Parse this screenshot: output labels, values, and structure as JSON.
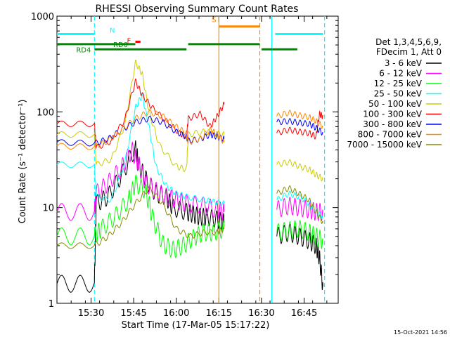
{
  "chart_data": {
    "type": "line",
    "title": "RHESSI Observing Summary Count Rates",
    "xlabel": "Start Time (17-Mar-05 15:17:22)",
    "ylabel": "Count Rate (s⁻¹ detector⁻¹)",
    "ylog": true,
    "ylim": [
      1,
      1000
    ],
    "xlim_minutes": [
      15.3,
      16.95
    ],
    "x_tick_labels": [
      "15:30",
      "15:45",
      "16:00",
      "16:15",
      "16:30",
      "16:45"
    ],
    "x_tick_values": [
      15.5,
      15.75,
      16.0,
      16.25,
      16.5,
      16.75
    ],
    "y_tick_labels": [
      "1",
      "10",
      "100",
      "1000"
    ],
    "y_tick_values": [
      1,
      10,
      100,
      1000
    ],
    "legend_header": [
      "Det 1,3,4,5,6,9,",
      "FDecim 1, Att 0"
    ],
    "legend_position": "right",
    "footer_date": "15-Oct-2021 14:56",
    "series": [
      {
        "name": "3 - 6 keV",
        "color": "#000000",
        "x": [
          15.3,
          15.52,
          15.53,
          15.6,
          15.68,
          15.76,
          15.78,
          15.82,
          15.88,
          15.94,
          15.98,
          16.06,
          16.1,
          16.14,
          16.18,
          16.24,
          16.28
        ],
        "y": [
          1.6,
          1.6,
          11.0,
          13.0,
          22.0,
          42.0,
          28.0,
          20.0,
          14.0,
          13.0,
          10.0,
          9.0,
          8.5,
          8.0,
          8.0,
          7.5,
          7.0
        ]
      },
      {
        "name": "6 - 12 keV",
        "color": "#ff00ff",
        "x": [
          15.3,
          15.52,
          15.53,
          15.6,
          15.68,
          15.74,
          15.78,
          15.82,
          15.88,
          15.94,
          16.0,
          16.06,
          16.16,
          16.24,
          16.28
        ],
        "y": [
          9.0,
          9.0,
          14.0,
          18.0,
          26.0,
          40.0,
          28.0,
          18.0,
          15.0,
          13.0,
          12.0,
          11.0,
          10.5,
          9.5,
          9.0
        ]
      },
      {
        "name": "12 - 25 keV",
        "color": "#00ff00",
        "x": [
          15.3,
          15.52,
          15.56,
          15.64,
          15.72,
          15.76,
          15.82,
          15.86,
          15.92,
          15.98,
          16.04,
          16.1,
          16.16,
          16.22,
          16.28
        ],
        "y": [
          5.0,
          5.0,
          6.0,
          8.0,
          12.0,
          18.0,
          15.0,
          8.0,
          4.2,
          3.6,
          4.0,
          4.8,
          5.5,
          5.5,
          6.0
        ]
      },
      {
        "name": "25 - 50 keV",
        "color": "#00ffff",
        "x": [
          15.3,
          15.52,
          15.53,
          15.62,
          15.7,
          15.76,
          15.8,
          15.84,
          15.88,
          15.94,
          16.0,
          16.06,
          16.16,
          16.22,
          16.28
        ],
        "y": [
          28.0,
          28.0,
          13.0,
          12.0,
          30.0,
          110.0,
          150.0,
          70.0,
          27.0,
          17.0,
          14.0,
          13.0,
          12.0,
          11.5,
          11.0
        ]
      },
      {
        "name": "50 - 100 keV",
        "color": "#cccc00",
        "x": [
          15.3,
          15.52,
          15.53,
          15.62,
          15.7,
          15.76,
          15.8,
          15.84,
          15.9,
          16.0,
          16.06,
          16.07,
          16.16,
          16.22,
          16.28
        ],
        "y": [
          58.0,
          58.0,
          28.0,
          32.0,
          75.0,
          330.0,
          250.0,
          100.0,
          45.0,
          27.0,
          25.0,
          58.0,
          62.0,
          60.0,
          58.0
        ]
      },
      {
        "name": "100 - 300 keV",
        "color": "#ff0000",
        "x": [
          15.3,
          15.52,
          15.53,
          15.62,
          15.7,
          15.76,
          15.8,
          15.86,
          15.94,
          16.02,
          16.06,
          16.07,
          16.14,
          16.2,
          16.24,
          16.28
        ],
        "y": [
          75.0,
          75.0,
          42.0,
          50.0,
          85.0,
          210.0,
          150.0,
          110.0,
          80.0,
          60.0,
          55.0,
          85.0,
          95.0,
          70.0,
          90.0,
          120.0
        ]
      },
      {
        "name": "300 - 800 keV",
        "color": "#0000ff",
        "x": [
          15.3,
          15.52,
          15.6,
          15.68,
          15.76,
          15.84,
          15.92,
          16.0,
          16.06,
          16.07,
          16.14,
          16.2,
          16.24,
          16.28
        ],
        "y": [
          48.0,
          47.0,
          52.0,
          65.0,
          78.0,
          85.0,
          78.0,
          62.0,
          55.0,
          50.0,
          52.0,
          58.0,
          55.0,
          52.0
        ]
      },
      {
        "name": "800 - 7000 keV",
        "color": "#ff8800",
        "x": [
          15.3,
          15.52,
          15.6,
          15.68,
          15.76,
          15.84,
          15.92,
          16.0,
          16.06,
          16.07,
          16.14,
          16.2,
          16.24,
          16.28
        ],
        "y": [
          44.0,
          43.0,
          50.0,
          65.0,
          85.0,
          100.0,
          90.0,
          70.0,
          60.0,
          48.0,
          52.0,
          65.0,
          58.0,
          48.0
        ]
      },
      {
        "name": "7000 - 15000 keV",
        "color": "#888800",
        "x": [
          15.3,
          15.52,
          15.6,
          15.68,
          15.76,
          15.84,
          15.92,
          16.0,
          16.08,
          16.16,
          16.24,
          16.28
        ],
        "y": [
          4.0,
          4.0,
          5.0,
          7.0,
          11.0,
          16.0,
          11.0,
          6.0,
          5.0,
          5.5,
          5.5,
          6.0
        ]
      }
    ],
    "series_gap2": {
      "3 - 6 keV": {
        "x": [
          16.59,
          16.66,
          16.72,
          16.78,
          16.82,
          16.84,
          16.86
        ],
        "y": [
          5.0,
          5.5,
          5.0,
          4.5,
          4.0,
          3.0,
          1.5
        ]
      },
      "6 - 12 keV": {
        "x": [
          16.59,
          16.66,
          16.72,
          16.78,
          16.82,
          16.86
        ],
        "y": [
          9.5,
          10.5,
          10.0,
          9.5,
          9.0,
          9.0
        ]
      },
      "12 - 25 keV": {
        "x": [
          16.59,
          16.66,
          16.72,
          16.78,
          16.82,
          16.86
        ],
        "y": [
          5.5,
          5.8,
          6.0,
          5.5,
          5.0,
          4.5
        ]
      },
      "25 - 50 keV": {
        "x": [
          16.59,
          16.66,
          16.72,
          16.78,
          16.82,
          16.86
        ],
        "y": [
          12.0,
          14.0,
          13.0,
          11.0,
          9.0,
          8.0
        ]
      },
      "50 - 100 keV": {
        "x": [
          16.59,
          16.66,
          16.72,
          16.78,
          16.82,
          16.86
        ],
        "y": [
          28.0,
          30.0,
          27.0,
          25.0,
          22.0,
          20.0
        ]
      },
      "100 - 300 keV": {
        "x": [
          16.59,
          16.66,
          16.72,
          16.78,
          16.82,
          16.84,
          16.86
        ],
        "y": [
          60.0,
          65.0,
          62.0,
          60.0,
          55.0,
          95.0,
          90.0
        ]
      },
      "300 - 800 keV": {
        "x": [
          16.59,
          16.66,
          16.72,
          16.78,
          16.82,
          16.86
        ],
        "y": [
          78.0,
          80.0,
          77.0,
          75.0,
          68.0,
          60.0
        ]
      },
      "800 - 7000 keV": {
        "x": [
          16.59,
          16.66,
          16.72,
          16.78,
          16.82,
          16.86
        ],
        "y": [
          90.0,
          98.0,
          92.0,
          88.0,
          80.0,
          70.0
        ]
      },
      "7000 - 15000 keV": {
        "x": [
          16.59,
          16.66,
          16.72,
          16.78,
          16.82,
          16.86
        ],
        "y": [
          14.0,
          16.0,
          14.0,
          12.0,
          9.0,
          7.0
        ]
      }
    },
    "flags": [
      {
        "label": "N",
        "color": "#00ffff",
        "level": 650,
        "x_start": 15.3,
        "x_end": 15.52,
        "x_start2": 16.58,
        "x_end2": 16.86
      },
      {
        "label": "F",
        "color": "#ff0000",
        "level": 540,
        "x_start": 15.76,
        "x_end": 15.79
      },
      {
        "label": "S",
        "color": "#ff8800",
        "level": 780,
        "x_start": 16.25,
        "x_end": 16.49
      },
      {
        "label": "RD0",
        "color": "#008800",
        "level": 510,
        "x_start": 15.3,
        "x_end": 15.76,
        "x_start2": 16.07,
        "x_end2": 16.49
      },
      {
        "label": "RD4",
        "color": "#008800",
        "level": 450,
        "x_start": 15.52,
        "x_end": 16.06,
        "x_start2": 16.5,
        "x_end2": 16.71
      }
    ],
    "vlines": [
      {
        "x": 15.52,
        "color": "#00ffff",
        "dashed": true
      },
      {
        "x": 16.25,
        "color": "#ff8800",
        "dashed": false
      },
      {
        "x": 16.49,
        "color": "#ff8800",
        "dashed": true
      },
      {
        "x": 16.56,
        "color": "#00ffff",
        "dashed": false
      },
      {
        "x": 16.87,
        "color": "#00ffff",
        "dashed": true
      }
    ],
    "grid": false
  }
}
